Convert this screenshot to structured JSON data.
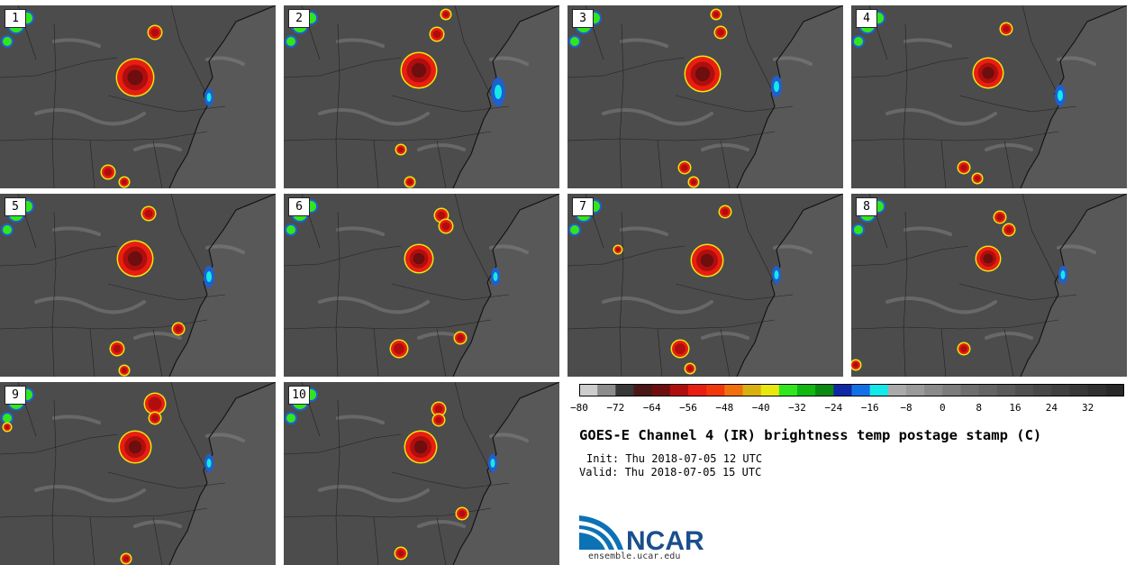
{
  "panels": [
    {
      "label": "1",
      "blobs": [
        [
          150,
          80,
          19
        ],
        [
          172,
          30,
          6
        ],
        [
          120,
          185,
          6
        ],
        [
          138,
          196,
          4
        ]
      ],
      "coasts": [
        [
          232,
          102,
          5
        ]
      ]
    },
    {
      "label": "2",
      "blobs": [
        [
          150,
          72,
          18
        ],
        [
          170,
          32,
          6
        ],
        [
          180,
          10,
          4
        ],
        [
          130,
          160,
          4
        ],
        [
          140,
          196,
          4
        ]
      ],
      "coasts": [
        [
          238,
          96,
          8
        ]
      ]
    },
    {
      "label": "3",
      "blobs": [
        [
          150,
          76,
          18
        ],
        [
          170,
          30,
          5
        ],
        [
          165,
          10,
          4
        ],
        [
          130,
          180,
          5
        ],
        [
          140,
          196,
          4
        ]
      ],
      "coasts": [
        [
          232,
          90,
          6
        ]
      ]
    },
    {
      "label": "4",
      "blobs": [
        [
          152,
          75,
          15
        ],
        [
          172,
          26,
          5
        ],
        [
          125,
          180,
          5
        ],
        [
          140,
          192,
          4
        ]
      ],
      "coasts": [
        [
          232,
          100,
          6
        ]
      ]
    },
    {
      "label": "5",
      "blobs": [
        [
          150,
          72,
          18
        ],
        [
          165,
          22,
          6
        ],
        [
          130,
          172,
          6
        ],
        [
          138,
          196,
          4
        ],
        [
          198,
          150,
          5
        ]
      ],
      "coasts": [
        [
          232,
          92,
          6
        ]
      ]
    },
    {
      "label": "6",
      "blobs": [
        [
          150,
          72,
          14
        ],
        [
          175,
          24,
          6
        ],
        [
          180,
          36,
          6
        ],
        [
          128,
          172,
          8
        ],
        [
          196,
          160,
          5
        ]
      ],
      "coasts": [
        [
          235,
          92,
          5
        ]
      ]
    },
    {
      "label": "7",
      "blobs": [
        [
          155,
          74,
          16
        ],
        [
          175,
          20,
          5
        ],
        [
          56,
          62,
          3
        ],
        [
          125,
          172,
          8
        ],
        [
          136,
          194,
          4
        ]
      ],
      "coasts": [
        [
          232,
          90,
          5
        ]
      ]
    },
    {
      "label": "8",
      "blobs": [
        [
          152,
          72,
          12
        ],
        [
          165,
          26,
          5
        ],
        [
          175,
          40,
          5
        ],
        [
          125,
          172,
          5
        ],
        [
          5,
          190,
          4
        ]
      ],
      "coasts": [
        [
          235,
          90,
          5
        ]
      ]
    },
    {
      "label": "9",
      "blobs": [
        [
          150,
          72,
          16
        ],
        [
          172,
          24,
          10
        ],
        [
          172,
          40,
          5
        ],
        [
          140,
          196,
          4
        ],
        [
          8,
          50,
          3
        ]
      ],
      "coasts": [
        [
          232,
          90,
          5
        ]
      ]
    },
    {
      "label": "10",
      "blobs": [
        [
          152,
          72,
          16
        ],
        [
          172,
          30,
          6
        ],
        [
          172,
          42,
          5
        ],
        [
          130,
          190,
          5
        ],
        [
          198,
          146,
          5
        ]
      ],
      "coasts": [
        [
          232,
          90,
          5
        ]
      ]
    }
  ],
  "colorbar": {
    "colors": [
      "#cdcdcd",
      "#8c8c8c",
      "#383838",
      "#4a1616",
      "#6e0e0e",
      "#b00e0e",
      "#e81e10",
      "#f0380a",
      "#f0700e",
      "#d9b00f",
      "#e8e80f",
      "#32e61e",
      "#10b810",
      "#0a8a10",
      "#1028a6",
      "#1270e6",
      "#14e8e8",
      "#aaaaaa",
      "#9a9a9a",
      "#8a8a8a",
      "#7c7c7c",
      "#6e6e6e",
      "#646464",
      "#5a5a5a",
      "#505050",
      "#484848",
      "#404040",
      "#383838",
      "#303030",
      "#282828"
    ],
    "ticks": [
      "−80",
      "−72",
      "−64",
      "−56",
      "−48",
      "−40",
      "−32",
      "−24",
      "−16",
      "−8",
      "0",
      "8",
      "16",
      "24",
      "32"
    ]
  },
  "title": "GOES-E Channel 4 (IR) brightness temp postage stamp (C)",
  "init": "Init: Thu 2018-07-05 12 UTC",
  "valid": "Valid: Thu 2018-07-05 15 UTC",
  "logo": {
    "text": "NCAR",
    "url": "ensemble.ucar.edu",
    "color": "#1a4f8a"
  }
}
